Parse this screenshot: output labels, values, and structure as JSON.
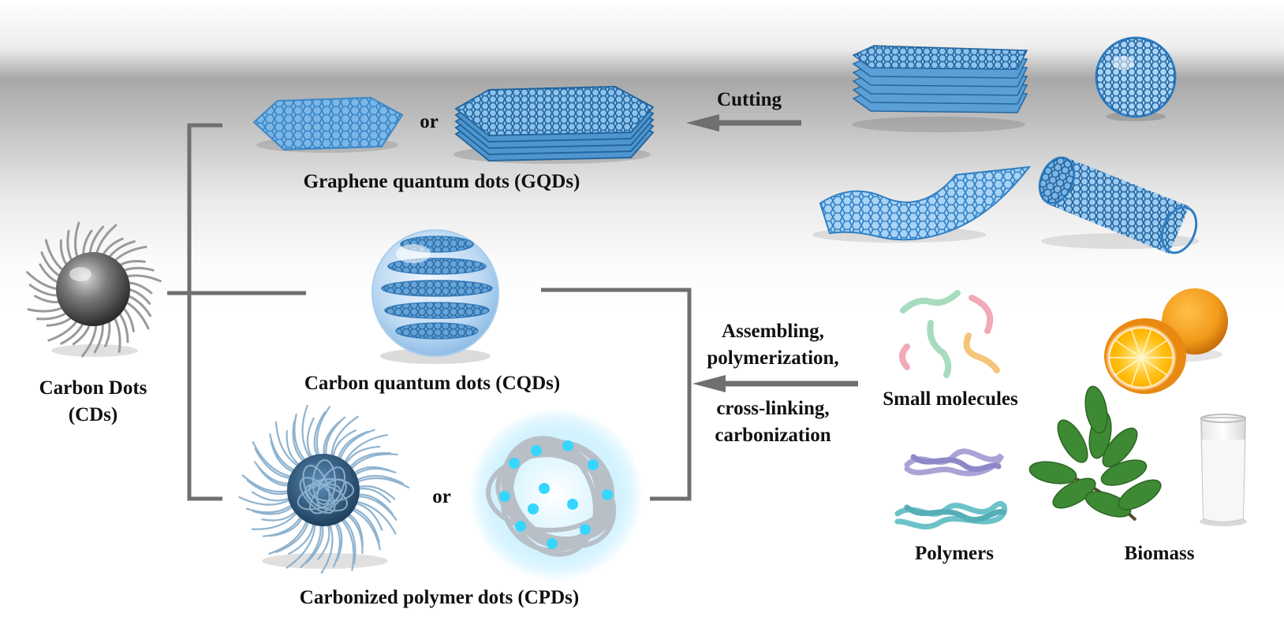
{
  "labels": {
    "carbon_dots_line1": "Carbon Dots",
    "carbon_dots_line2": "(CDs)",
    "gqds": "Graphene quantum dots (GQDs)",
    "cqds": "Carbon quantum dots (CQDs)",
    "cpds": "Carbonized polymer dots (CPDs)",
    "or_top": "or",
    "or_bottom": "or",
    "cutting": "Cutting",
    "assembling_line1": "Assembling,",
    "assembling_line2": "polymerization,",
    "assembling_line3": "cross-linking,",
    "assembling_line4": "carbonization",
    "small_molecules": "Small molecules",
    "polymers": "Polymers",
    "biomass": "Biomass"
  },
  "colors": {
    "bracket": "#6f6f6f",
    "graphene": "#3e8fcf",
    "orange": "#f39a1a",
    "leaf": "#3e8a34",
    "text": "#111111"
  }
}
